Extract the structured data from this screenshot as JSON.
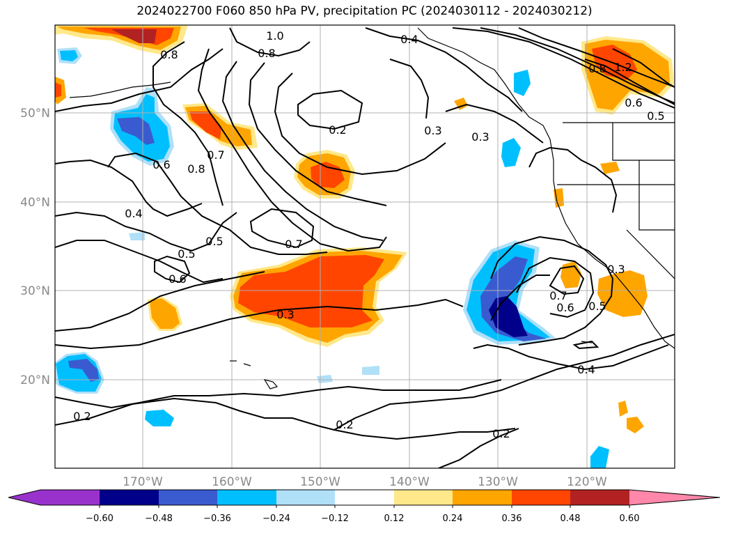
{
  "title": "2024022700 F060 850 hPa PV, precipitation PC (2024030112 - 2024030212)",
  "map": {
    "lat_labels": [
      "50°N",
      "40°N",
      "30°N",
      "20°N"
    ],
    "lon_labels": [
      "170°W",
      "160°W",
      "150°W",
      "140°W",
      "130°W",
      "120°W"
    ]
  },
  "contour_labels": [
    "0.8",
    "1.0",
    "0.8",
    "0.4",
    "0.2",
    "0.3",
    "0.3",
    "0.6",
    "0.8",
    "0.7",
    "0.4",
    "0.5",
    "0.5",
    "0.6",
    "0.7",
    "0.3",
    "0.2",
    "0.2",
    "0.2",
    "0.7",
    "0.6",
    "0.5",
    "0.4",
    "0.3",
    "0.8",
    "0.6",
    "0.5",
    "1.2"
  ],
  "colorbar": {
    "ticks": [
      "−0.60",
      "−0.48",
      "−0.36",
      "−0.24",
      "−0.12",
      "0.12",
      "0.24",
      "0.36",
      "0.48",
      "0.60"
    ],
    "colors": [
      "#9932cc",
      "#00008b",
      "#3a5bd0",
      "#00bfff",
      "#b0e0f8",
      "#ffffff",
      "#ffe88a",
      "#ffa500",
      "#ff4500",
      "#b22222",
      "#ff88aa"
    ]
  }
}
